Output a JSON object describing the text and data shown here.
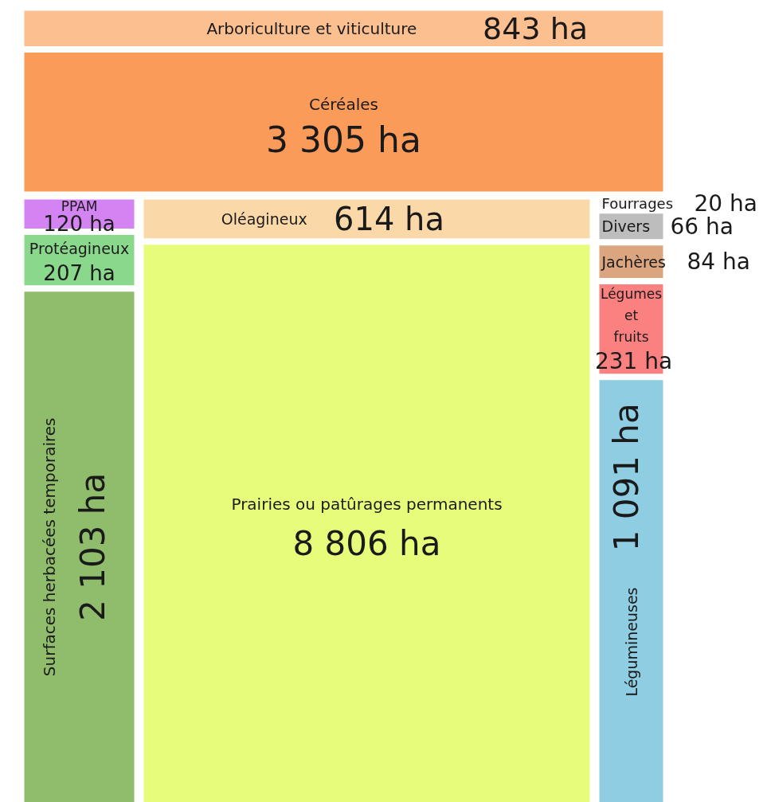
{
  "chart_data": {
    "type": "other",
    "categories": [
      "Arboriculture et viticulture",
      "Céréales",
      "PPAM",
      "Oléagineux",
      "Protéagineux",
      "Surfaces herbacées temporaires",
      "Prairies ou patûrages permanents",
      "Fourrages",
      "Divers",
      "Jachères",
      "Légumes et fruits",
      "Légumineuses"
    ],
    "values": [
      843,
      3305,
      120,
      614,
      207,
      2103,
      8806,
      20,
      66,
      84,
      231,
      1091
    ],
    "value_labels": [
      "843 ha",
      "3 305 ha",
      "120 ha",
      "614 ha",
      "207 ha",
      "2 103 ha",
      "8 806 ha",
      "20 ha",
      "66 ha",
      "84 ha",
      "231 ha",
      "1 091 ha"
    ],
    "colors": [
      "#fbbf90",
      "#fb9b5a",
      "#d383f2",
      "#fbd8a8",
      "#8ad88c",
      "#8fbd6c",
      "#e8fc7c",
      "#f4f4f4",
      "#bdbdbd",
      "#dba67f",
      "#fb8080",
      "#8ecde2"
    ]
  }
}
